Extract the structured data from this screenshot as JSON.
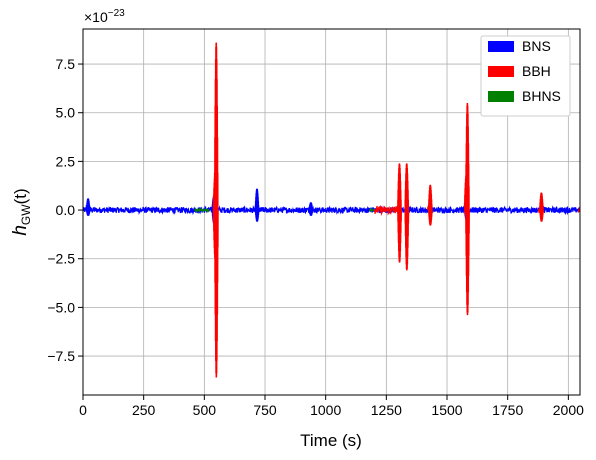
{
  "chart_data": {
    "type": "line",
    "title": "",
    "xlabel": "Time (s)",
    "ylabel_main": "h",
    "ylabel_sub": "GW",
    "ylabel_arg": "(t)",
    "offset_base": "×10",
    "offset_exp": "−23",
    "xlim": [
      0,
      2048
    ],
    "ylim": [
      -9.5,
      9.3
    ],
    "x_ticks": [
      0,
      250,
      500,
      750,
      1000,
      1250,
      1500,
      1750,
      2000
    ],
    "x_tick_labels": [
      "0",
      "250",
      "500",
      "750",
      "1000",
      "1250",
      "1500",
      "1750",
      "2000"
    ],
    "y_ticks": [
      -7.5,
      -5.0,
      -2.5,
      0.0,
      2.5,
      5.0,
      7.5
    ],
    "y_tick_labels": [
      "−7.5",
      "−5.0",
      "−2.5",
      "0.0",
      "2.5",
      "5.0",
      "7.5"
    ],
    "grid": true,
    "legend_position": "top-right",
    "series": [
      {
        "name": "BNS",
        "color": "#0000ff",
        "noise_band": [
          [
            0,
            2048,
            0.15
          ]
        ],
        "spikes": [
          [
            22,
            0.6,
            -0.3
          ],
          [
            540,
            0.7,
            -0.7
          ],
          [
            718,
            1.1,
            -0.6
          ],
          [
            940,
            0.4,
            -0.3
          ],
          [
            1580,
            0.6,
            -0.5
          ]
        ]
      },
      {
        "name": "BBH",
        "color": "#ff0000",
        "noise_band": [
          [
            1200,
            1305,
            0.2
          ],
          [
            1420,
            1440,
            0.2
          ],
          [
            1875,
            1895,
            0.15
          ],
          [
            2040,
            2048,
            0.1
          ]
        ],
        "spikes": [
          [
            545,
            1.8,
            -2.5
          ],
          [
            550,
            8.6,
            -8.6
          ],
          [
            1305,
            2.4,
            -2.7
          ],
          [
            1335,
            2.4,
            -3.1
          ],
          [
            1432,
            1.3,
            -0.8
          ],
          [
            1580,
            1.8,
            -0.3
          ],
          [
            1585,
            5.5,
            -5.4
          ],
          [
            1890,
            0.9,
            -0.6
          ]
        ]
      },
      {
        "name": "BHNS",
        "color": "#008000",
        "noise_band": [
          [
            460,
            520,
            0.05
          ],
          [
            1180,
            1205,
            0.05
          ]
        ],
        "spikes": []
      }
    ]
  }
}
